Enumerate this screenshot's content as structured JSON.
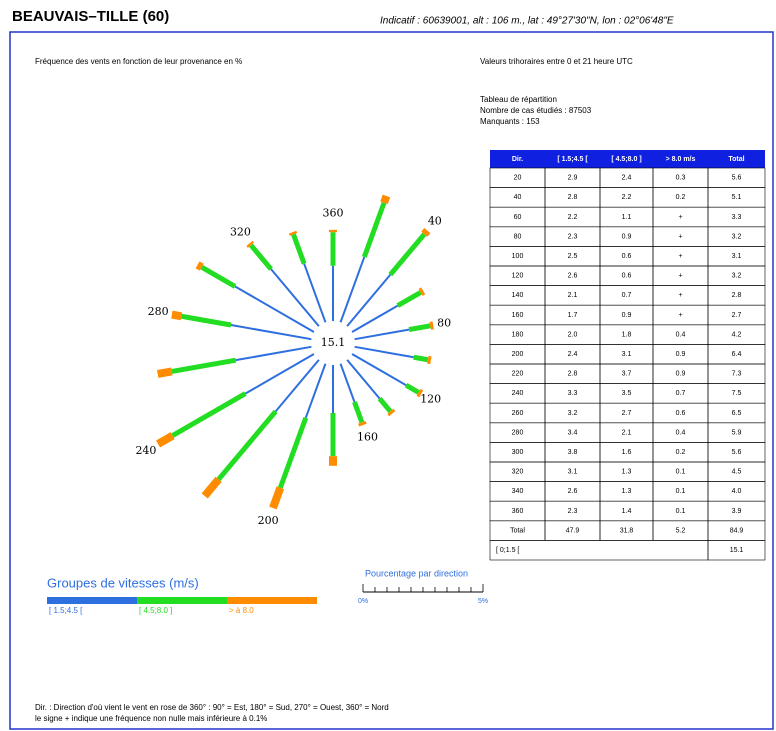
{
  "header": {
    "title": "BEAUVAIS–TILLE (60)",
    "info": "Indicatif : 60639001, alt : 106 m., lat : 49°27'30\"N, lon : 02°06'48\"E"
  },
  "subtitle": "Fréquence des vents en fonction de leur provenance en %",
  "period": "Valeurs trihoraires entre 0 et 21 heure UTC",
  "summary": {
    "title": "Tableau de répartition",
    "cases": "Nombre de cas étudiés : 87503",
    "missing": "Manquants : 153"
  },
  "table": {
    "header": [
      "Dir.",
      "[ 1.5;4.5 [",
      "[ 4.5;8.0 ]",
      "> 8.0 m/s",
      "Total"
    ],
    "rows": [
      [
        "20",
        "2.9",
        "2.4",
        "0.3",
        "5.6"
      ],
      [
        "40",
        "2.8",
        "2.2",
        "0.2",
        "5.1"
      ],
      [
        "60",
        "2.2",
        "1.1",
        "+",
        "3.3"
      ],
      [
        "80",
        "2.3",
        "0.9",
        "+",
        "3.2"
      ],
      [
        "100",
        "2.5",
        "0.6",
        "+",
        "3.1"
      ],
      [
        "120",
        "2.6",
        "0.6",
        "+",
        "3.2"
      ],
      [
        "140",
        "2.1",
        "0.7",
        "+",
        "2.8"
      ],
      [
        "160",
        "1.7",
        "0.9",
        "+",
        "2.7"
      ],
      [
        "180",
        "2.0",
        "1.8",
        "0.4",
        "4.2"
      ],
      [
        "200",
        "2.4",
        "3.1",
        "0.9",
        "6.4"
      ],
      [
        "220",
        "2.8",
        "3.7",
        "0.9",
        "7.3"
      ],
      [
        "240",
        "3.3",
        "3.5",
        "0.7",
        "7.5"
      ],
      [
        "260",
        "3.2",
        "2.7",
        "0.6",
        "6.5"
      ],
      [
        "280",
        "3.4",
        "2.1",
        "0.4",
        "5.9"
      ],
      [
        "300",
        "3.8",
        "1.6",
        "0.2",
        "5.6"
      ],
      [
        "320",
        "3.1",
        "1.3",
        "0.1",
        "4.5"
      ],
      [
        "340",
        "2.6",
        "1.3",
        "0.1",
        "4.0"
      ],
      [
        "360",
        "2.3",
        "1.4",
        "0.1",
        "3.9"
      ]
    ],
    "total": [
      "Total",
      "47.9",
      "31.8",
      "5.2",
      "84.9"
    ],
    "calm": [
      "[ 0;1.5 [",
      "15.1"
    ]
  },
  "legend": {
    "title": "Groupes de vitesses (m/s)",
    "groups": [
      {
        "label": "[ 1.5;4.5 [",
        "color": "#2e6fe0"
      },
      {
        "label": "[ 4.5;8.0 ]",
        "color": "#22dd22"
      },
      {
        "label": "> à 8.0",
        "color": "#ff8c00"
      }
    ]
  },
  "scale": {
    "title": "Pourcentage par direction",
    "min_label": "0%",
    "max_label": "5%"
  },
  "notes": [
    "Dir. : Direction d'où vient le vent en rose de 360° : 90° = Est, 180° = Sud, 270° = Ouest, 360° = Nord",
    "le signe + indique une fréquence non nulle mais inférieure à 0.1%"
  ]
}
